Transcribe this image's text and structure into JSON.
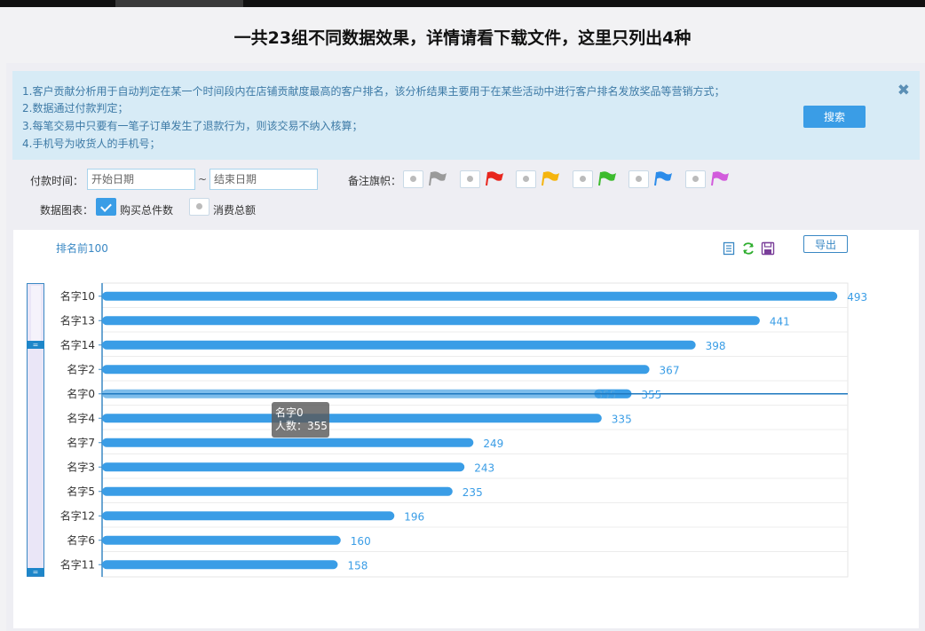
{
  "headline": "一共23组不同数据效果，详情请看下载文件，这里只列出4种",
  "notice": {
    "lines": [
      "1.客户贡献分析用于自动判定在某一个时间段内在店铺贡献度最高的客户排名，该分析结果主要用于在某些活动中进行客户排名发放奖品等营销方式；",
      "2.数据通过付款判定；",
      "3.每笔交易中只要有一笔子订单发生了退款行为，则该交易不纳入核算；",
      "4.手机号为收货人的手机号；"
    ],
    "search_label": "搜索",
    "close_icon": "close-icon"
  },
  "filters": {
    "payment_time_label": "付款时间：",
    "start_placeholder": "开始日期",
    "end_placeholder": "结束日期",
    "tilde": "~",
    "flag_label": "备注旗帜：",
    "flags": [
      {
        "icon": "flag-gray-icon",
        "color": "#9a9a9a"
      },
      {
        "icon": "flag-red-icon",
        "color": "#e8261e"
      },
      {
        "icon": "flag-yellow-icon",
        "color": "#f5b40e"
      },
      {
        "icon": "flag-green-icon",
        "color": "#3dbb2e"
      },
      {
        "icon": "flag-blue-icon",
        "color": "#2c8cea"
      },
      {
        "icon": "flag-purple-icon",
        "color": "#d25bdc"
      }
    ],
    "chart_label": "数据图表：",
    "option_purchase": "购买总件数",
    "option_spend": "消费总额"
  },
  "chart_panel": {
    "title": "排名前100",
    "export_label": "导出",
    "tools": [
      "document-icon",
      "refresh-icon",
      "save-icon"
    ]
  },
  "chart_data": {
    "type": "bar",
    "orientation": "horizontal",
    "categories": [
      "名字10",
      "名字13",
      "名字14",
      "名字2",
      "名字0",
      "名字4",
      "名字7",
      "名字3",
      "名字5",
      "名字12",
      "名字6",
      "名字11"
    ],
    "values": [
      493,
      441,
      398,
      367,
      355,
      335,
      249,
      243,
      235,
      196,
      160,
      158
    ],
    "xlim": [
      0,
      500
    ],
    "bar_color": "#3a9de6",
    "highlight_color": "#7dbdeb",
    "label_color": "#3a9de6",
    "grid": true,
    "highlighted_index": 4,
    "tooltip": {
      "name": "名字0",
      "text": "人数：355"
    }
  }
}
